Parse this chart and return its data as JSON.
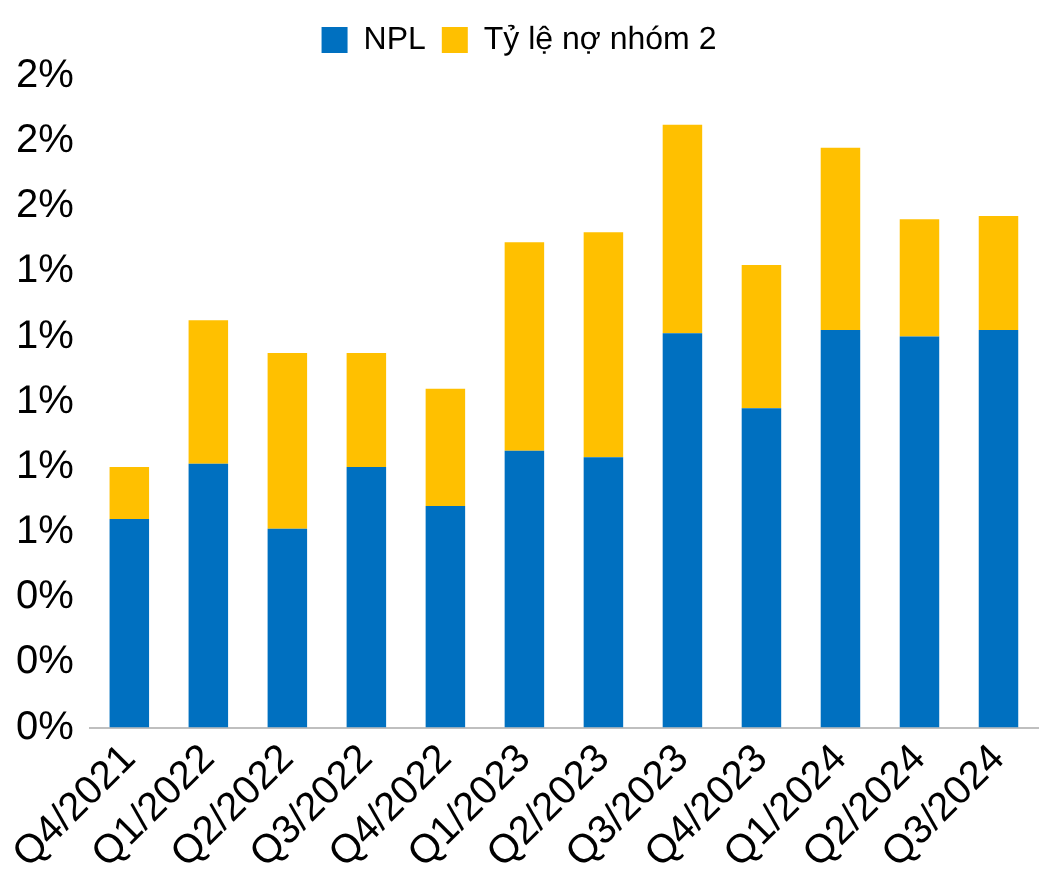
{
  "chart_data": {
    "type": "bar",
    "stacked": true,
    "legend": "top",
    "grid": false,
    "categories": [
      "Q4/2021",
      "Q1/2022",
      "Q2/2022",
      "Q3/2022",
      "Q4/2022",
      "Q1/2023",
      "Q2/2023",
      "Q3/2023",
      "Q4/2023",
      "Q1/2024",
      "Q2/2024",
      "Q3/2024"
    ],
    "series": [
      {
        "name": "NPL",
        "color": "#0070c0",
        "values": [
          0.64,
          0.81,
          0.61,
          0.8,
          0.68,
          0.85,
          0.83,
          1.21,
          0.98,
          1.22,
          1.2,
          1.22
        ]
      },
      {
        "name": "Tỷ lệ nợ nhóm 2",
        "color": "#ffc000",
        "values": [
          0.16,
          0.44,
          0.54,
          0.35,
          0.36,
          0.64,
          0.69,
          0.64,
          0.44,
          0.56,
          0.36,
          0.35
        ]
      }
    ],
    "ylim": [
      0,
      2
    ],
    "yticks": [
      {
        "value": 0,
        "label": "0%"
      },
      {
        "value": 0.2,
        "label": "0%"
      },
      {
        "value": 0.4,
        "label": "0%"
      },
      {
        "value": 0.6,
        "label": "1%"
      },
      {
        "value": 0.8,
        "label": "1%"
      },
      {
        "value": 1,
        "label": "1%"
      },
      {
        "value": 1.2,
        "label": "1%"
      },
      {
        "value": 1.4,
        "label": "1%"
      },
      {
        "value": 1.6,
        "label": "2%"
      },
      {
        "value": 1.8,
        "label": "2%"
      },
      {
        "value": 2,
        "label": "2%"
      }
    ]
  }
}
